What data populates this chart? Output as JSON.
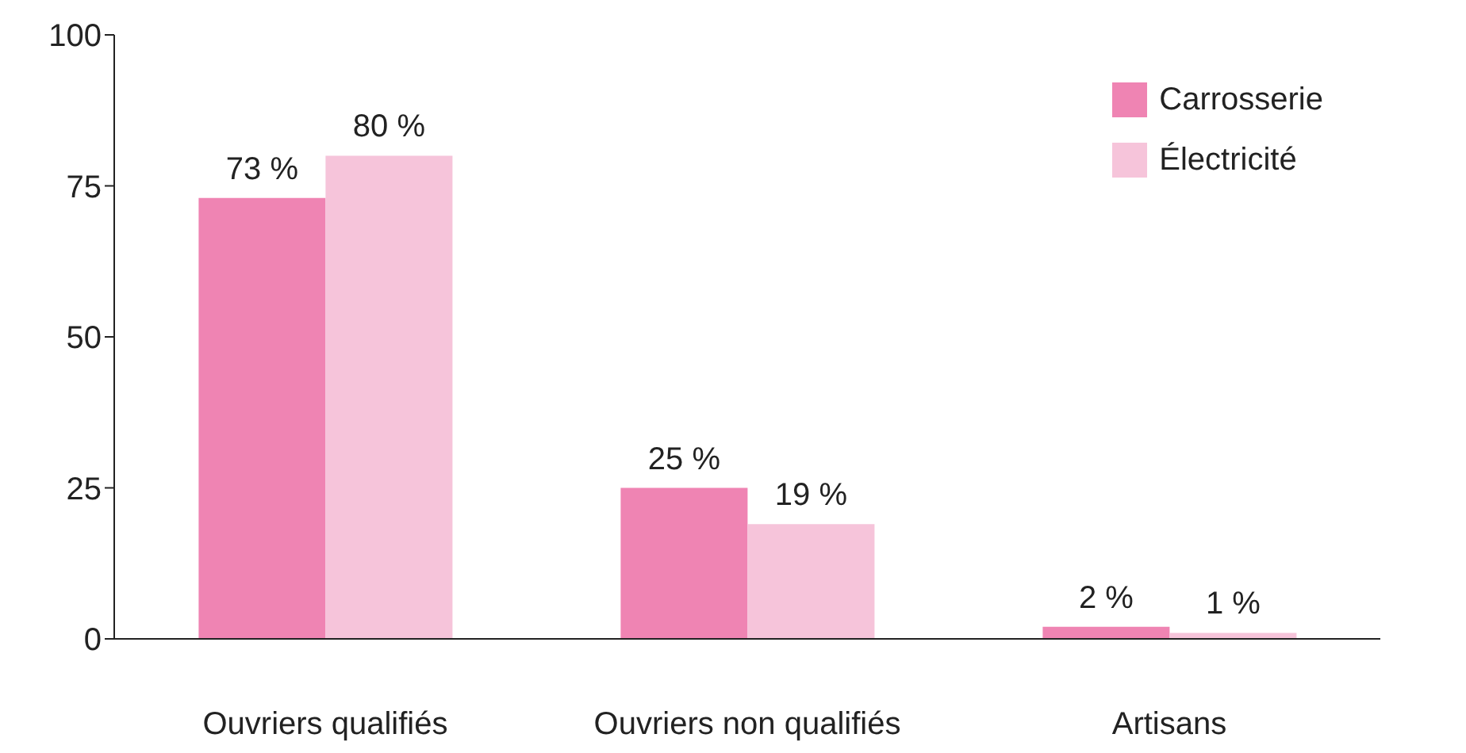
{
  "chart_data": {
    "type": "bar",
    "categories": [
      "Ouvriers qualifiés",
      "Ouvriers non qualifiés",
      "Artisans"
    ],
    "series": [
      {
        "name": "Carrosserie",
        "color": "#ef84b3",
        "values": [
          73,
          25,
          2
        ],
        "value_labels": [
          "73 %",
          "25 %",
          "2 %"
        ]
      },
      {
        "name": "Électricité",
        "color": "#f6c4da",
        "values": [
          80,
          19,
          1
        ],
        "value_labels": [
          "80 %",
          "19 %",
          "1 %"
        ]
      }
    ],
    "ylim": [
      0,
      100
    ],
    "yticks": [
      0,
      25,
      50,
      75,
      100
    ],
    "grid": false,
    "legend": "top right"
  }
}
